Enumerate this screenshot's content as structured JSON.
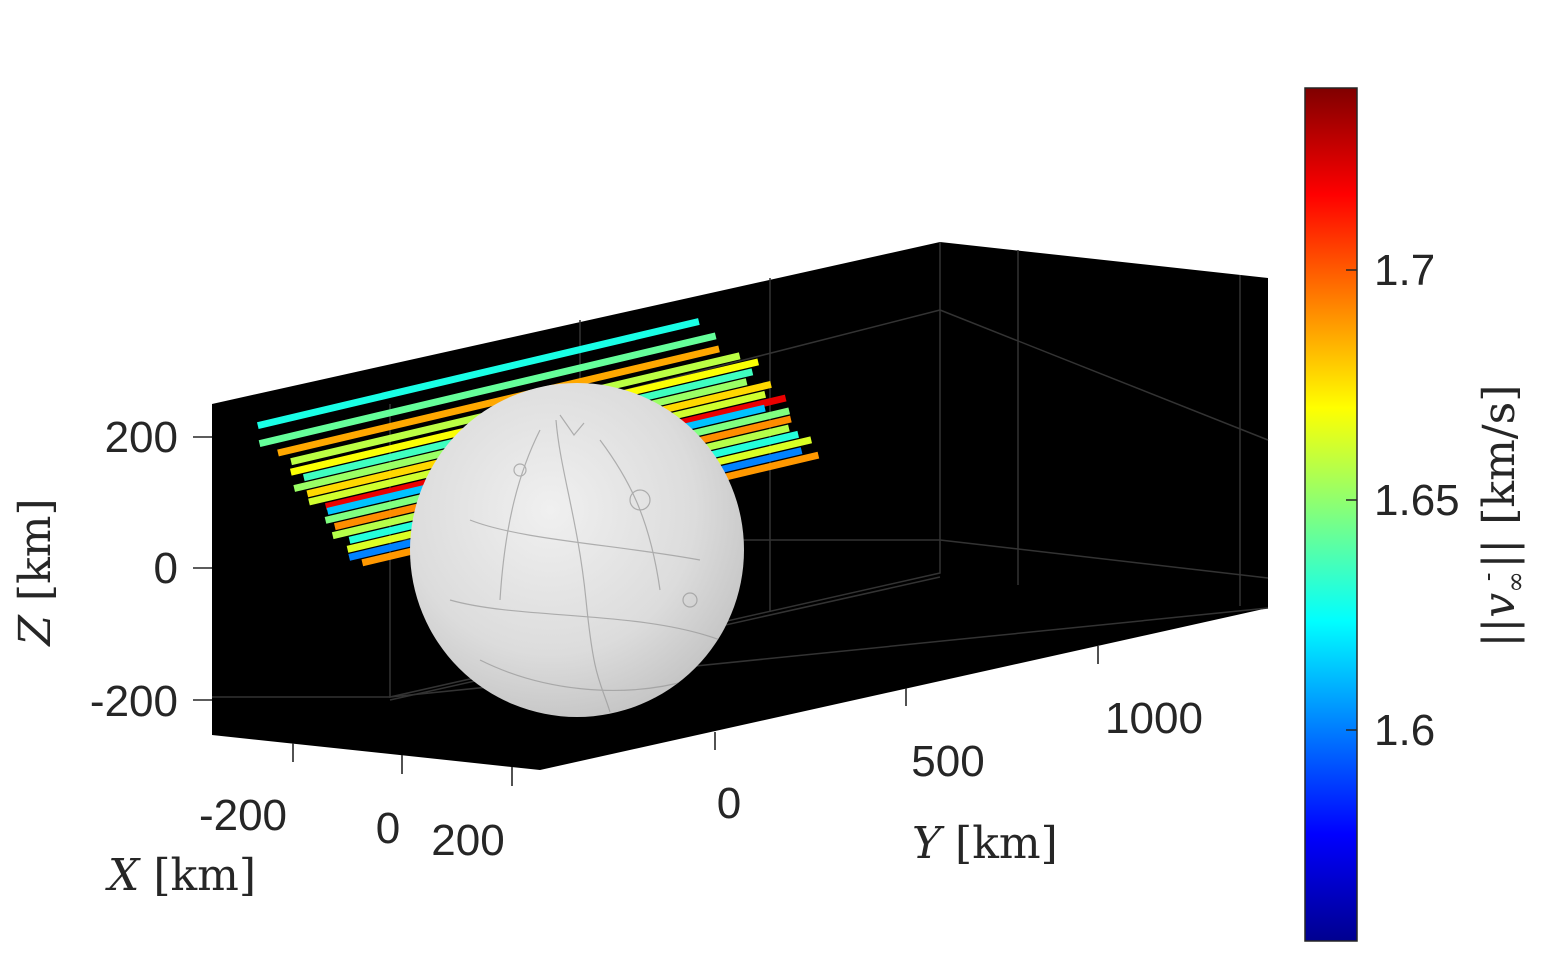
{
  "chart_data": {
    "type": "3d-line",
    "axes": {
      "x": {
        "label_var": "X",
        "label_unit": "[km]",
        "ticks": [
          "-200",
          "0",
          "200"
        ],
        "range": [
          -260,
          260
        ]
      },
      "y": {
        "label_var": "Y",
        "label_unit": "[km]",
        "ticks": [
          "0",
          "500",
          "1000"
        ],
        "range": [
          -250,
          1250
        ]
      },
      "z": {
        "label_var": "Z",
        "label_unit": "[km]",
        "ticks": [
          "200",
          "0",
          "-200"
        ],
        "range": [
          -250,
          250
        ]
      }
    },
    "background": "#000000",
    "grid": true,
    "body": {
      "name": "Enceladus sphere",
      "center_km": [
        0,
        0,
        0
      ],
      "radius_km": 252,
      "color": "#d3d3d3"
    },
    "colorbar": {
      "colormap": "jet",
      "range": [
        1.55,
        1.74
      ],
      "ticks": [
        "1.6",
        "1.65",
        "1.7"
      ],
      "label": "||v∞⁻|| [km/s]",
      "label_prefix": "||",
      "label_var": "v",
      "label_sub": "∞",
      "label_sup": "-",
      "label_suffix": "|| [km/s]"
    },
    "series": [
      {
        "x": -180,
        "z": 215,
        "y_start": -120,
        "y_end": 1050,
        "v": 1.626
      },
      {
        "x": -170,
        "z": 190,
        "y_start": -130,
        "y_end": 1080,
        "v": 1.64
      },
      {
        "x": -150,
        "z": 175,
        "y_start": -110,
        "y_end": 1060,
        "v": 1.685
      },
      {
        "x": -140,
        "z": 160,
        "y_start": -90,
        "y_end": 1100,
        "v": 1.656
      },
      {
        "x": -120,
        "z": 150,
        "y_start": -120,
        "y_end": 1120,
        "v": 1.668
      },
      {
        "x": -110,
        "z": 140,
        "y_start": -100,
        "y_end": 1090,
        "v": 1.633
      },
      {
        "x": -100,
        "z": 130,
        "y_start": -140,
        "y_end": 1060,
        "v": 1.65
      },
      {
        "x": -90,
        "z": 120,
        "y_start": -120,
        "y_end": 1110,
        "v": 1.676
      },
      {
        "x": -80,
        "z": 110,
        "y_start": -130,
        "y_end": 1080,
        "v": 1.66
      },
      {
        "x": -70,
        "z": 100,
        "y_start": -100,
        "y_end": 1120,
        "v": 1.72
      },
      {
        "x": -60,
        "z": 95,
        "y_start": -110,
        "y_end": 1050,
        "v": 1.61
      },
      {
        "x": -50,
        "z": 85,
        "y_start": -130,
        "y_end": 1100,
        "v": 1.645
      },
      {
        "x": -40,
        "z": 75,
        "y_start": -120,
        "y_end": 1090,
        "v": 1.69
      },
      {
        "x": -30,
        "z": 65,
        "y_start": -140,
        "y_end": 1070,
        "v": 1.655
      },
      {
        "x": -20,
        "z": 55,
        "y_start": -110,
        "y_end": 1080,
        "v": 1.628
      },
      {
        "x": -10,
        "z": 45,
        "y_start": -130,
        "y_end": 1100,
        "v": 1.662
      },
      {
        "x": 0,
        "z": 35,
        "y_start": -140,
        "y_end": 1060,
        "v": 1.598
      },
      {
        "x": 10,
        "z": 25,
        "y_start": -120,
        "y_end": 1090,
        "v": 1.688
      }
    ]
  }
}
